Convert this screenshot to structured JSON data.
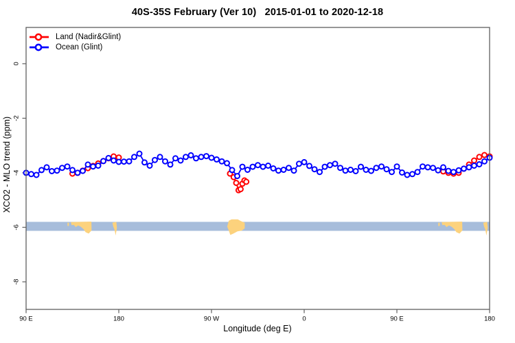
{
  "title": "40S-35S February (Ver 10)   2015-01-01 to 2020-12-18",
  "legend": {
    "items": [
      {
        "label": "Land (Nadir&Glint)",
        "color": "#ff0000"
      },
      {
        "label": "Ocean (Glint)",
        "color": "#0000ff"
      }
    ]
  },
  "axes": {
    "x": {
      "label": "Longitude (deg E)",
      "range": [
        90,
        540
      ],
      "ticks": [
        {
          "v": 90,
          "label": "90 E"
        },
        {
          "v": 180,
          "label": "180"
        },
        {
          "v": 270,
          "label": "90 W"
        },
        {
          "v": 360,
          "label": "0"
        },
        {
          "v": 450,
          "label": "90 E"
        },
        {
          "v": 540,
          "label": "180"
        }
      ]
    },
    "y": {
      "label": "XCO2 - MLO trend (ppm)",
      "range": [
        -9.01,
        1.33
      ],
      "ticks": [
        {
          "v": 0,
          "label": "0"
        },
        {
          "v": -2,
          "label": "-2"
        },
        {
          "v": -4,
          "label": "-4"
        },
        {
          "v": -6,
          "label": "-6"
        },
        {
          "v": -8,
          "label": "-8"
        }
      ]
    }
  },
  "chart_data": {
    "type": "line",
    "title": "40S-35S February (Ver 10)   2015-01-01 to 2020-12-18",
    "xlabel": "Longitude (deg E)",
    "ylabel": "XCO2 - MLO trend (ppm)",
    "xlim": [
      90,
      540
    ],
    "ylim": [
      -9.01,
      1.33
    ],
    "grid": false,
    "legend_position": "top-left-inside",
    "note": "x axis is longitude wrapping eastward: 90E to 180 to 90W to 0 to 90E to 180",
    "series": [
      {
        "name": "Ocean (Glint)",
        "color": "#0000ff",
        "marker": "open-circle",
        "x": [
          90,
          95,
          100,
          105,
          110,
          115,
          120,
          125,
          130,
          135,
          140,
          145,
          150,
          155,
          160,
          165,
          170,
          175,
          180,
          185,
          190,
          195,
          200,
          205,
          210,
          215,
          220,
          225,
          230,
          235,
          240,
          245,
          250,
          255,
          260,
          265,
          270,
          275,
          280,
          285,
          290,
          295,
          300,
          305,
          310,
          315,
          320,
          325,
          330,
          335,
          340,
          345,
          350,
          355,
          360,
          365,
          370,
          375,
          380,
          385,
          390,
          395,
          400,
          405,
          410,
          415,
          420,
          425,
          430,
          435,
          440,
          445,
          450,
          455,
          460,
          465,
          470,
          475,
          480,
          485,
          490,
          495,
          500,
          505,
          510,
          515,
          520,
          525,
          530,
          535,
          540
        ],
        "y": [
          -4.0,
          -4.05,
          -4.08,
          -3.9,
          -3.8,
          -3.94,
          -3.92,
          -3.82,
          -3.77,
          -3.9,
          -4.0,
          -3.93,
          -3.7,
          -3.77,
          -3.74,
          -3.57,
          -3.46,
          -3.55,
          -3.6,
          -3.59,
          -3.58,
          -3.42,
          -3.3,
          -3.62,
          -3.74,
          -3.53,
          -3.42,
          -3.58,
          -3.7,
          -3.47,
          -3.55,
          -3.42,
          -3.36,
          -3.47,
          -3.42,
          -3.39,
          -3.45,
          -3.51,
          -3.58,
          -3.65,
          -3.9,
          -4.12,
          -3.78,
          -3.89,
          -3.78,
          -3.72,
          -3.78,
          -3.74,
          -3.84,
          -3.92,
          -3.89,
          -3.82,
          -3.92,
          -3.67,
          -3.61,
          -3.75,
          -3.87,
          -3.97,
          -3.78,
          -3.72,
          -3.67,
          -3.82,
          -3.92,
          -3.89,
          -3.94,
          -3.78,
          -3.89,
          -3.93,
          -3.82,
          -3.77,
          -3.87,
          -3.97,
          -3.77,
          -3.99,
          -4.08,
          -4.05,
          -3.97,
          -3.77,
          -3.8,
          -3.82,
          -3.91,
          -3.8,
          -3.93,
          -3.97,
          -3.91,
          -3.85,
          -3.8,
          -3.74,
          -3.69,
          -3.58,
          -3.45
        ]
      },
      {
        "name": "Land (Nadir&Glint)",
        "color": "#ff0000",
        "marker": "open-circle",
        "segments": [
          {
            "x": [
              135,
              140,
              145,
              150,
              155,
              160,
              165,
              170,
              175,
              180
            ],
            "y": [
              -4.03,
              -4.0,
              -3.92,
              -3.83,
              -3.75,
              -3.66,
              -3.57,
              -3.47,
              -3.4,
              -3.44
            ]
          },
          {
            "x": [
              288,
              291.5,
              294,
              296.3,
              298.3,
              300,
              302,
              303.8
            ],
            "y": [
              -4.03,
              -4.16,
              -4.37,
              -4.64,
              -4.6,
              -4.4,
              -4.28,
              -4.33
            ]
          },
          {
            "x": [
              495,
              500,
              505,
              510,
              515,
              520,
              525,
              530,
              535,
              540
            ],
            "y": [
              -3.95,
              -4.0,
              -4.03,
              -4.0,
              -3.85,
              -3.7,
              -3.55,
              -3.42,
              -3.35,
              -3.4
            ]
          }
        ]
      }
    ],
    "map_strip": {
      "description": "latitude-band world map: ocean band with land outlines",
      "ocean_color": "#a7bddb",
      "land_color": "#fcd27d",
      "band_y": [
        -6.13,
        -5.8
      ],
      "land_polygons": [
        {
          "name": "sw-australia-speck",
          "points": [
            [
              130.2,
              -5.83
            ],
            [
              131.6,
              -5.83
            ],
            [
              131.6,
              -5.95
            ],
            [
              130.2,
              -5.95
            ]
          ]
        },
        {
          "name": "australia",
          "points": [
            [
              133.4,
              -5.81
            ],
            [
              153.4,
              -5.79
            ],
            [
              153.6,
              -6.11
            ],
            [
              150.8,
              -6.23
            ],
            [
              147.8,
              -6.18
            ],
            [
              145.8,
              -6.07
            ],
            [
              143.2,
              -5.98
            ],
            [
              140.6,
              -5.93
            ],
            [
              138.2,
              -5.99
            ],
            [
              136.2,
              -5.91
            ],
            [
              134.2,
              -5.92
            ]
          ]
        },
        {
          "name": "new-zealand",
          "points": [
            [
              173.8,
              -5.83
            ],
            [
              177.6,
              -5.8
            ],
            [
              178.2,
              -6.02
            ],
            [
              176.9,
              -6.3
            ],
            [
              175.9,
              -6.1
            ],
            [
              174.5,
              -5.96
            ]
          ]
        },
        {
          "name": "south-america",
          "points": [
            [
              285.3,
              -5.97
            ],
            [
              286.8,
              -5.76
            ],
            [
              289.5,
              -5.71
            ],
            [
              295.5,
              -5.71
            ],
            [
              298.5,
              -5.77
            ],
            [
              302.3,
              -5.83
            ],
            [
              302.3,
              -6.04
            ],
            [
              299.5,
              -6.12
            ],
            [
              295.3,
              -6.15
            ],
            [
              291.3,
              -6.23
            ],
            [
              288.3,
              -6.28
            ],
            [
              286.8,
              -6.12
            ]
          ]
        },
        {
          "name": "sw-australia-speck-2",
          "points": [
            [
              490.2,
              -5.83
            ],
            [
              491.6,
              -5.83
            ],
            [
              491.6,
              -5.95
            ],
            [
              490.2,
              -5.95
            ]
          ]
        },
        {
          "name": "australia-2",
          "points": [
            [
              493.4,
              -5.81
            ],
            [
              513.4,
              -5.79
            ],
            [
              513.6,
              -6.11
            ],
            [
              510.8,
              -6.23
            ],
            [
              507.8,
              -6.18
            ],
            [
              505.8,
              -6.07
            ],
            [
              503.2,
              -5.98
            ],
            [
              500.6,
              -5.93
            ],
            [
              498.2,
              -5.99
            ],
            [
              496.2,
              -5.91
            ],
            [
              494.2,
              -5.92
            ]
          ]
        },
        {
          "name": "new-zealand-2",
          "points": [
            [
              533.8,
              -5.83
            ],
            [
              537.6,
              -5.8
            ],
            [
              538.2,
              -6.02
            ],
            [
              536.9,
              -6.3
            ],
            [
              535.9,
              -6.1
            ],
            [
              534.5,
              -5.96
            ]
          ]
        }
      ]
    },
    "style": {
      "frame_color": "#5f5f5f",
      "marker_radius": 3.5,
      "line_width": 1.8
    }
  }
}
